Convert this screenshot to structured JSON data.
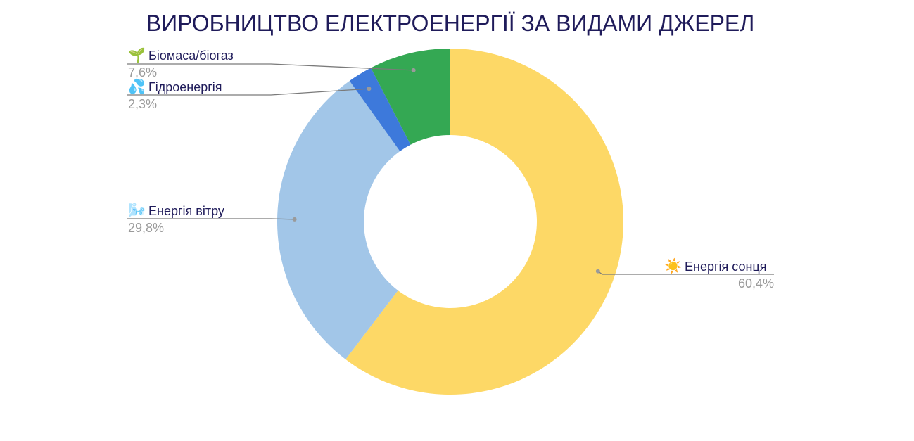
{
  "chart_data": {
    "type": "pie",
    "donut": true,
    "title": "ВИРОБНИЦТВО ЕЛЕКТРОЕНЕРГІЇ ЗА ВИДАМИ ДЖЕРЕЛ",
    "slices": [
      {
        "label": "Енергія сонця",
        "value": 60.4,
        "value_text": "60,4%",
        "color": "#fdd866",
        "icon": "sun-icon",
        "glyph": "☀️"
      },
      {
        "label": "Енергія вітру",
        "value": 29.8,
        "value_text": "29,8%",
        "color": "#a2c6e8",
        "icon": "wind-icon",
        "glyph": "🌬️"
      },
      {
        "label": "Гідроенергія",
        "value": 2.3,
        "value_text": "2,3%",
        "color": "#3d79db",
        "icon": "water-droplets-icon",
        "glyph": "💦"
      },
      {
        "label": "Біомаса/біогаз",
        "value": 7.6,
        "value_text": "7,6%",
        "color": "#34a853",
        "icon": "seedling-icon",
        "glyph": "🌱"
      }
    ],
    "legend": "none",
    "labels": "outside with leader lines"
  }
}
